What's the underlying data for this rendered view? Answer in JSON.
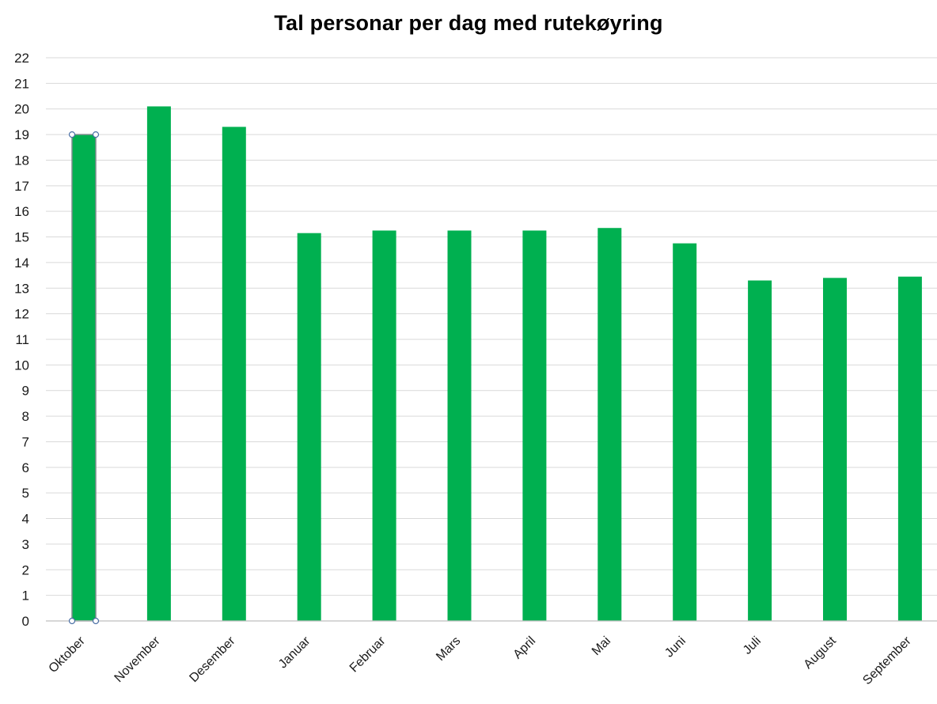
{
  "colors": {
    "bar": "#00b050",
    "selected_bar_outline": "#7f8c8d",
    "selection_handle": "#4a6fa5",
    "gridline": "#d9d9d9",
    "axis": "#bfbfbf"
  },
  "chart_data": {
    "type": "bar",
    "title": "Tal personar per dag med rutekøyring",
    "xlabel": "",
    "ylabel": "",
    "categories": [
      "Oktober",
      "November",
      "Desember",
      "Januar",
      "Februar",
      "Mars",
      "April",
      "Mai",
      "Juni",
      "Juli",
      "August",
      "September"
    ],
    "values": [
      19.0,
      20.1,
      19.3,
      15.15,
      15.25,
      15.25,
      15.25,
      15.35,
      14.75,
      13.3,
      13.4,
      13.45
    ],
    "ylim": [
      0,
      22
    ],
    "yticks": [
      "0",
      "1",
      "2",
      "3",
      "4",
      "5",
      "6",
      "7",
      "8",
      "9",
      "10",
      "11",
      "12",
      "13",
      "14",
      "15",
      "16",
      "17",
      "18",
      "19",
      "20",
      "21",
      "22"
    ],
    "grid": true,
    "legend": "none",
    "selected_category": "Oktober"
  }
}
